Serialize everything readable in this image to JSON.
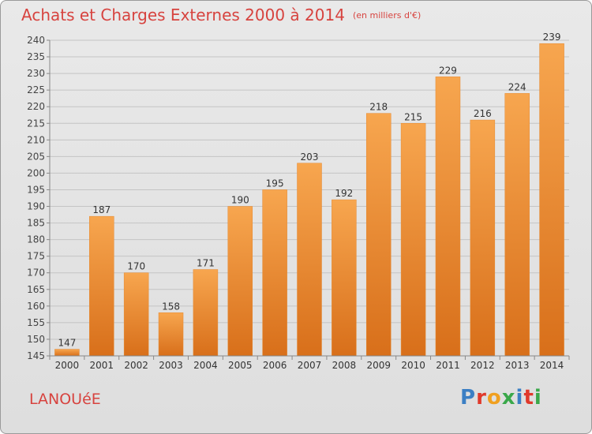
{
  "header": {
    "title": "Achats et Charges Externes 2000 à 2014",
    "subtitle": "(en milliers d'€)"
  },
  "footer": {
    "commune": "LANOUéE",
    "logo": "Proxiti"
  },
  "colors": {
    "bar_light": "#f7a64f",
    "bar_dark": "#d86f1a",
    "title": "#d7433f"
  },
  "chart_data": {
    "type": "bar",
    "title": "Achats et Charges Externes 2000 à 2014",
    "subtitle": "(en milliers d'€)",
    "categories": [
      "2000",
      "2001",
      "2002",
      "2003",
      "2004",
      "2005",
      "2006",
      "2007",
      "2008",
      "2009",
      "2010",
      "2011",
      "2012",
      "2013",
      "2014"
    ],
    "values": [
      147,
      187,
      170,
      158,
      171,
      190,
      195,
      203,
      192,
      218,
      215,
      229,
      216,
      224,
      239
    ],
    "ylim": [
      145,
      240
    ],
    "yticks": [
      145,
      150,
      155,
      160,
      165,
      170,
      175,
      180,
      185,
      190,
      195,
      200,
      205,
      210,
      215,
      220,
      225,
      230,
      235,
      240
    ],
    "grid": true,
    "legend": "none"
  }
}
